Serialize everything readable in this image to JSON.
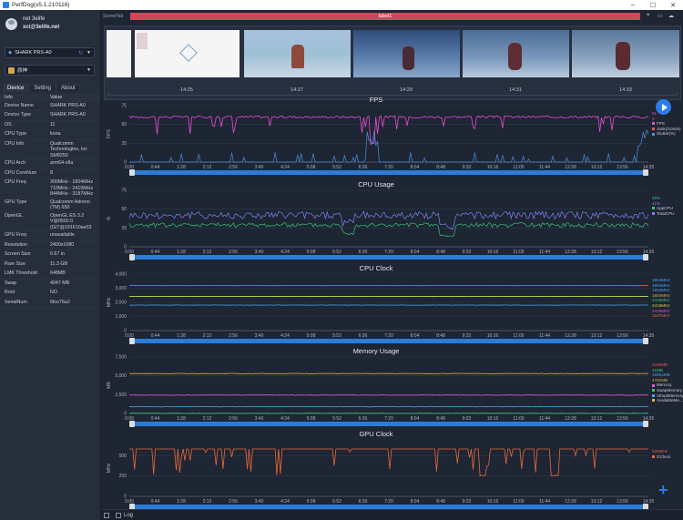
{
  "window": {
    "title": "PerfDog(v5.1.210116)",
    "minimize": "–",
    "maximize": "☐",
    "close": "✕"
  },
  "user": {
    "name": "net 3elife",
    "email": "xci@3elife.net"
  },
  "device_selector": {
    "value": "SHARK PRS-A0",
    "icon": "android-icon"
  },
  "app_selector": {
    "value": "原神",
    "icon": "app-icon"
  },
  "tabs": [
    {
      "label": "Device",
      "active": true
    },
    {
      "label": "Setting"
    },
    {
      "label": "About"
    }
  ],
  "info": {
    "head": [
      "Info",
      "Value"
    ],
    "rows": [
      [
        "Device Name",
        "SHARK PRS-A0"
      ],
      [
        "Device Type",
        "SHARK PRS-A0"
      ],
      [
        "OS",
        "11"
      ],
      [
        "CPU Type",
        "kona"
      ],
      [
        "CPU Info",
        "Qualcomm Technologies, Inc SM8250"
      ],
      [
        "CPU Arch",
        "arm64-v8a"
      ],
      [
        "CPU CoreNum",
        "8"
      ],
      [
        "CPU Freq",
        "300MHz - 1804MHz 710MHz - 2419MHz 844MHz - 3187MHz"
      ],
      [
        "GPU Type",
        "Qualcomm Adreno (TM) 650"
      ],
      [
        "OpenGL",
        "OpenGL ES 3.2 V@0502.0 (GIT@191610ae03"
      ],
      [
        "GPU Freq",
        "unavailable"
      ],
      [
        "Resolution",
        "2400x1080"
      ],
      [
        "Screen Size",
        "6.67 in"
      ],
      [
        "Ram Size",
        "11.3 GB"
      ],
      [
        "LMK Threshold",
        "648MB"
      ],
      [
        "Swap",
        "4047 MB"
      ],
      [
        "Root",
        "NO"
      ],
      [
        "SerialNum",
        "6fce76a2"
      ]
    ]
  },
  "scene": {
    "tab_label": "SceneTab",
    "label": "label1"
  },
  "thumbnails": {
    "times": [
      "14:25",
      "14:27",
      "14:29",
      "14:31",
      "14:33"
    ]
  },
  "x_ticks": [
    "0:00",
    "0:44",
    "1:28",
    "2:12",
    "2:56",
    "3:40",
    "4:24",
    "5:08",
    "5:52",
    "6:36",
    "7:20",
    "8:04",
    "8:48",
    "9:32",
    "10:16",
    "11:00",
    "11:44",
    "12:28",
    "13:12",
    "13:56",
    "14:35"
  ],
  "charts": [
    {
      "key": "fps",
      "title": "FPS",
      "ylabel": "FPS",
      "yticks": [
        "0",
        "25",
        "50",
        "75"
      ],
      "ymax": 75,
      "current_values": [
        {
          "text": "61",
          "color": "#e44fd2"
        },
        {
          "text": "0",
          "color": "#e55"
        }
      ],
      "legend": [
        {
          "name": "FPS",
          "color": "#e44fd2"
        },
        {
          "name": "Jank(/10min)",
          "color": "#e55"
        },
        {
          "name": "Stutter(%)",
          "color": "#4a8fe0"
        }
      ]
    },
    {
      "key": "cpu",
      "title": "CPU Usage",
      "ylabel": "%",
      "yticks": [
        "0",
        "25",
        "50",
        "75"
      ],
      "ymax": 75,
      "current_values": [
        {
          "text": "29%",
          "color": "#3bc47a"
        },
        {
          "text": "41%",
          "color": "#7d86f0"
        }
      ],
      "legend": [
        {
          "name": "AppCPU",
          "color": "#3bc47a"
        },
        {
          "name": "TotalCPU",
          "color": "#7d86f0"
        }
      ]
    },
    {
      "key": "clock",
      "title": "CPU Clock",
      "ylabel": "MHz",
      "yticks": [
        "0",
        "1,000",
        "2,000",
        "3,000",
        "4,000"
      ],
      "ymax": 4000,
      "current_values": [
        {
          "text": "1804MHz",
          "color": "#4aa3f0"
        },
        {
          "text": "1804MHz",
          "color": "#4aa3f0"
        },
        {
          "text": "1804MHz",
          "color": "#4aa3f0"
        },
        {
          "text": "1804MHz",
          "color": "#e0b340"
        },
        {
          "text": "2419MHz",
          "color": "#3bc47a"
        },
        {
          "text": "2419MHz",
          "color": "#d6d04a"
        },
        {
          "text": "2419MHz",
          "color": "#e44fd2"
        },
        {
          "text": "3187MHz",
          "color": "#e66a3a"
        }
      ],
      "legend": []
    },
    {
      "key": "memory",
      "title": "Memory Usage",
      "ylabel": "MB",
      "yticks": [
        "0",
        "2,500",
        "5,000",
        "7,500"
      ],
      "ymax": 7500,
      "current_values": [
        {
          "text": "2436MB",
          "color": "#e55"
        },
        {
          "text": "21MB",
          "color": "#3bc47a"
        },
        {
          "text": "18064MB",
          "color": "#4aa3f0"
        },
        {
          "text": "4761MB",
          "color": "#e0b340"
        }
      ],
      "legend": [
        {
          "name": "Memory",
          "color": "#e44fd2"
        },
        {
          "name": "SwapMemory",
          "color": "#3bc47a"
        },
        {
          "name": "VirtualMemory",
          "color": "#4aa3f0"
        },
        {
          "name": "AvailableMe...",
          "color": "#e0b340"
        }
      ]
    },
    {
      "key": "gpu",
      "title": "GPU Clock",
      "ylabel": "MHz",
      "yticks": [
        "0",
        "250",
        "500"
      ],
      "ymax": 700,
      "current_values": [
        {
          "text": "525MHz",
          "color": "#e66a3a"
        }
      ],
      "legend": [
        {
          "name": "GClock",
          "color": "#e66a3a"
        }
      ]
    }
  ],
  "bottom": {
    "log_label": "Log"
  }
}
